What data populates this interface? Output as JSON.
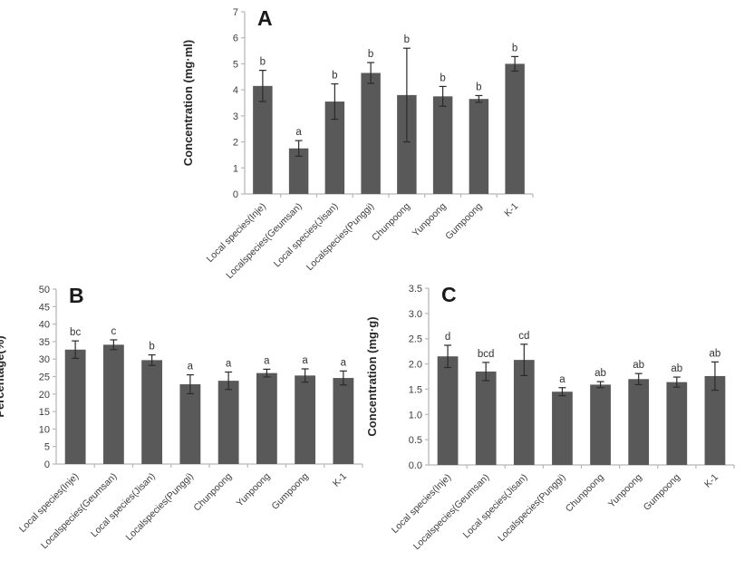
{
  "figure": {
    "background": "#ffffff",
    "description_panels": [
      "A",
      "B",
      "C"
    ]
  },
  "colors": {
    "bar": "#595959",
    "error_bar": "#2b2b2b",
    "axis": "#b8b8b8",
    "tick_label": "#3d3d3d",
    "x_label": "#3d3d3d",
    "sig_letter": "#333333",
    "panel_label": "#1a1a1a",
    "y_axis_label": "#262626"
  },
  "chart_data": [
    {
      "id": "A",
      "type": "bar",
      "panel_label": "A",
      "title": "",
      "xlabel": "",
      "ylabel": "Concentration (mg·ml)",
      "ylim": [
        0,
        7
      ],
      "ytick_step": 1,
      "ytick_decimals": 0,
      "grid": false,
      "legend": "none",
      "categories": [
        "Local species(Inje)",
        "Localspecies(Geumsan)",
        "Local species(Jisan)",
        "Localspecies(Punggi)",
        "Chunpoong",
        "Yunpoong",
        "Gumpoong",
        "K-1"
      ],
      "values": [
        4.15,
        1.75,
        3.55,
        4.65,
        3.8,
        3.75,
        3.65,
        5.0
      ],
      "errors": [
        0.6,
        0.3,
        0.68,
        0.4,
        1.8,
        0.38,
        0.13,
        0.28
      ],
      "sig_letters": [
        "b",
        "a",
        "b",
        "b",
        "b",
        "b",
        "b",
        "b"
      ]
    },
    {
      "id": "B",
      "type": "bar",
      "panel_label": "B",
      "title": "",
      "xlabel": "",
      "ylabel": "Percentage(%)",
      "ylim": [
        0,
        50
      ],
      "ytick_step": 5,
      "ytick_decimals": 0,
      "grid": false,
      "legend": "none",
      "categories": [
        "Local species(Inje)",
        "Localspecies(Geumsan)",
        "Local species(Jisan)",
        "Localspecies(Punggi)",
        "Chunpoong",
        "Yunpoong",
        "Gumpoong",
        "K-1"
      ],
      "values": [
        32.7,
        34.1,
        29.7,
        22.8,
        23.8,
        26.0,
        25.3,
        24.6
      ],
      "errors": [
        2.5,
        1.4,
        1.5,
        2.7,
        2.5,
        1.1,
        1.9,
        2.0
      ],
      "sig_letters": [
        "bc",
        "c",
        "b",
        "a",
        "a",
        "a",
        "a",
        "a"
      ]
    },
    {
      "id": "C",
      "type": "bar",
      "panel_label": "C",
      "title": "",
      "xlabel": "",
      "ylabel": "Concentration (mg·g)",
      "ylim": [
        0,
        3.5
      ],
      "ytick_step": 0.5,
      "ytick_decimals": 1,
      "grid": false,
      "legend": "none",
      "categories": [
        "Local species(Inje)",
        "Localspecies(Geumsan)",
        "Local species(Jisan)",
        "Localspecies(Punggi)",
        "Chunpoong",
        "Yunpoong",
        "Gumpoong",
        "K-1"
      ],
      "values": [
        2.15,
        1.85,
        2.08,
        1.45,
        1.59,
        1.7,
        1.64,
        1.76
      ],
      "errors": [
        0.22,
        0.18,
        0.31,
        0.08,
        0.06,
        0.11,
        0.1,
        0.28
      ],
      "sig_letters": [
        "d",
        "bcd",
        "cd",
        "a",
        "ab",
        "ab",
        "ab",
        "ab"
      ]
    }
  ]
}
